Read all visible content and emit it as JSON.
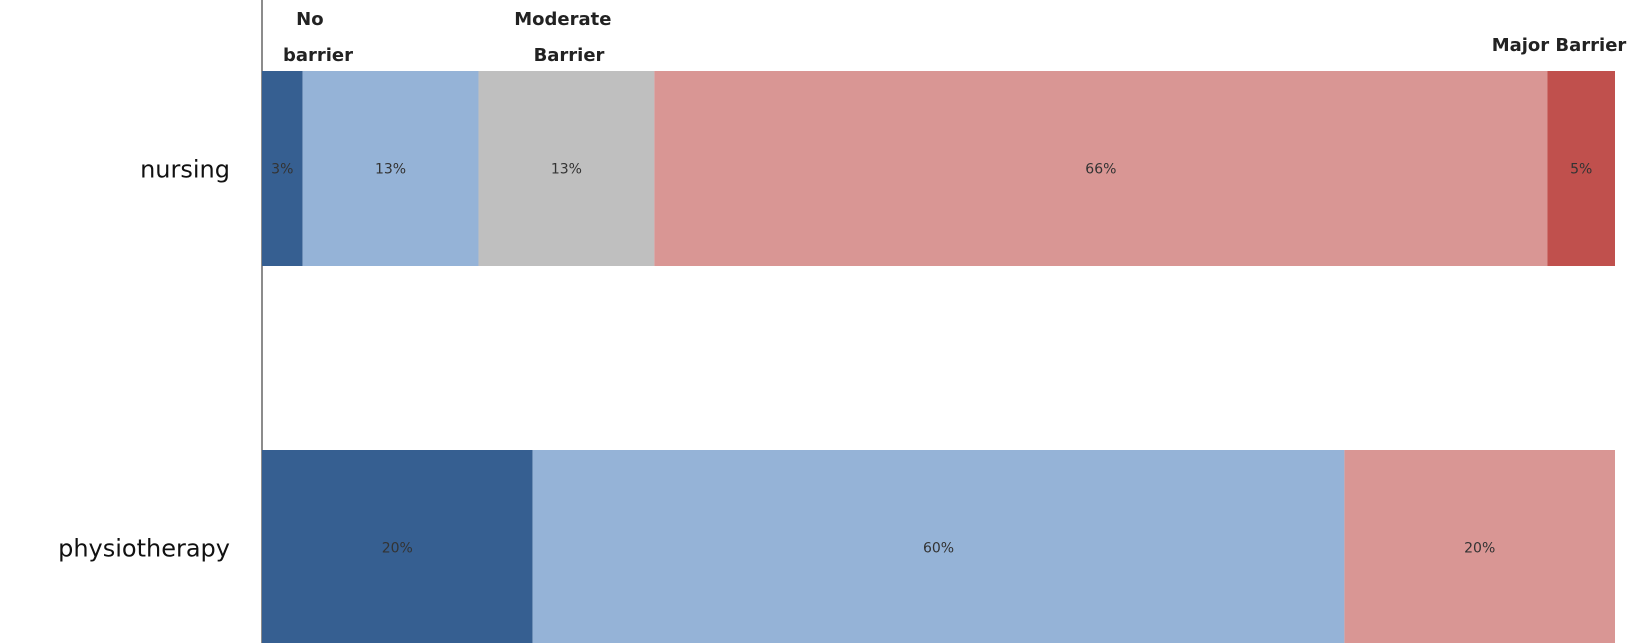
{
  "chart_data": {
    "type": "bar",
    "orientation": "horizontal",
    "stacked": true,
    "title": "",
    "xlabel": "",
    "ylabel": "",
    "legend": "none",
    "grid": false,
    "scale_labels": [
      "No barrier",
      "Moderate Barrier",
      "Major Barrier"
    ],
    "categories": [
      "nursing",
      "physiotherapy"
    ],
    "series": [
      {
        "color": "#365f91",
        "values": [
          3,
          20
        ],
        "labels": [
          "3%",
          "20%"
        ]
      },
      {
        "color": "#95b3d7",
        "values": [
          13,
          60
        ],
        "labels": [
          "13%",
          "60%"
        ]
      },
      {
        "color": "#bfbfbf",
        "values": [
          13,
          0
        ],
        "labels": [
          "13%",
          ""
        ]
      },
      {
        "color": "#d99694",
        "values": [
          66,
          20
        ],
        "labels": [
          "66%",
          "20%"
        ]
      },
      {
        "color": "#c0504d",
        "values": [
          5,
          0
        ],
        "labels": [
          "5%",
          ""
        ]
      }
    ],
    "xlim": [
      0,
      100
    ]
  }
}
